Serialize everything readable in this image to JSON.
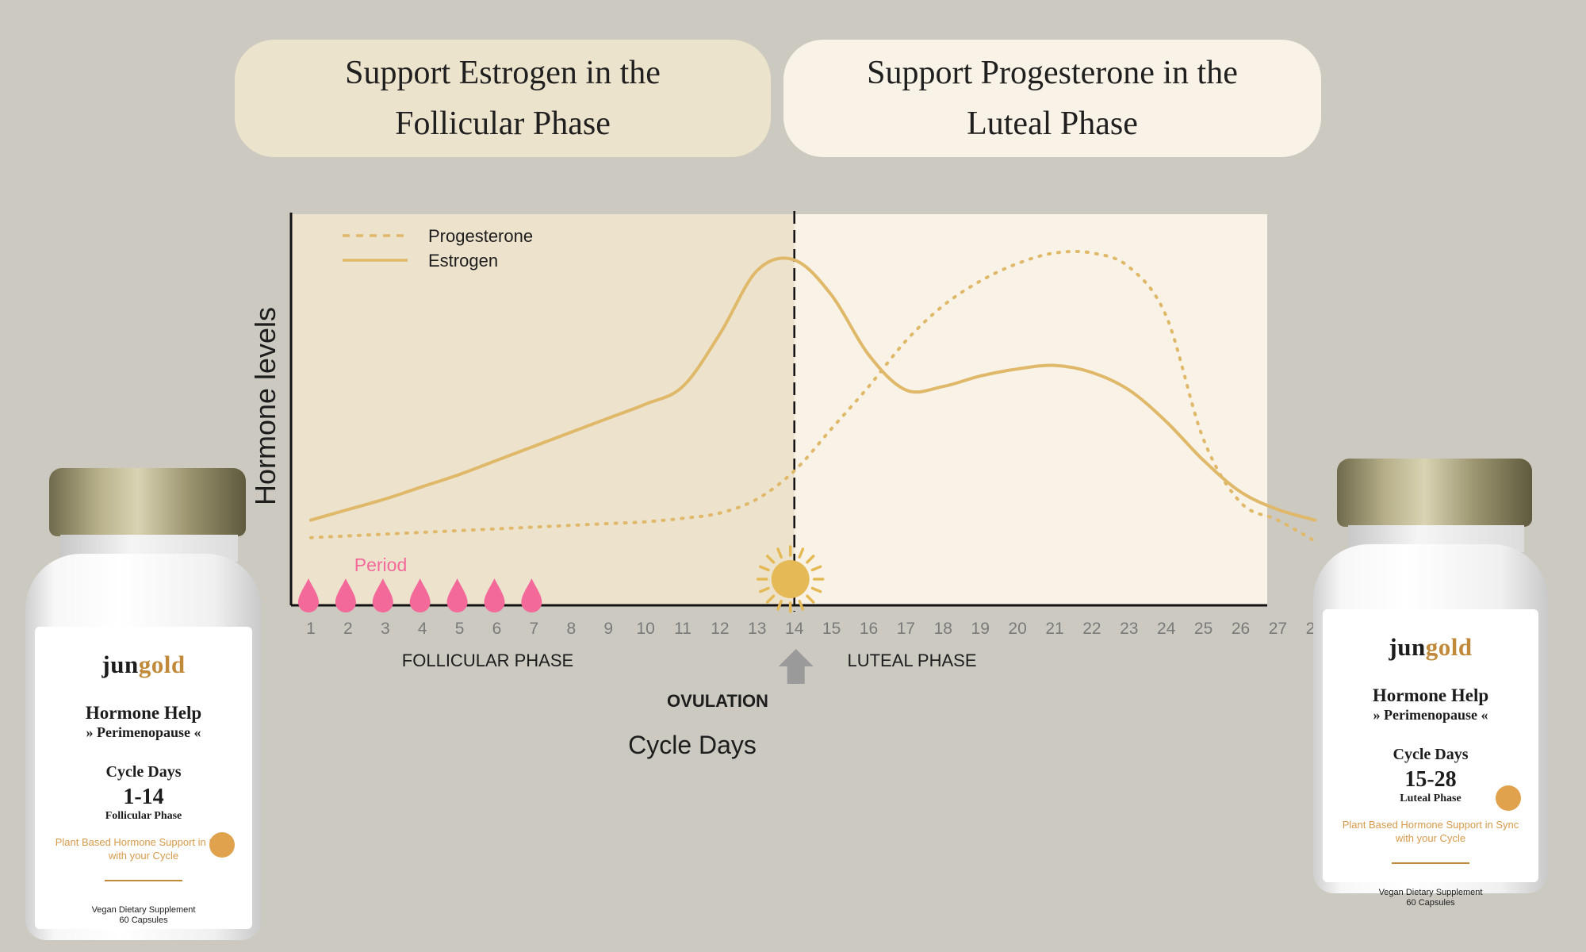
{
  "headers": {
    "left": [
      "Support Estrogen in the",
      "Follicular Phase"
    ],
    "right": [
      "Support Progesterone in the",
      "Luteal Phase"
    ]
  },
  "chart_data": {
    "type": "line",
    "xlabel": "Cycle Days",
    "ylabel": "Hormone levels",
    "x": [
      1,
      2,
      3,
      4,
      5,
      6,
      7,
      8,
      9,
      10,
      11,
      12,
      13,
      14,
      15,
      16,
      17,
      18,
      19,
      20,
      21,
      22,
      23,
      24,
      25,
      26,
      27,
      28
    ],
    "xlim": [
      0.5,
      28.5
    ],
    "ylim": [
      0,
      10
    ],
    "grid": false,
    "legend_position": "top-left",
    "series": [
      {
        "name": "Progesterone",
        "style": "dotted",
        "values": [
          1.7,
          1.75,
          1.8,
          1.85,
          1.9,
          1.95,
          2.0,
          2.05,
          2.1,
          2.15,
          2.25,
          2.4,
          2.8,
          3.6,
          4.8,
          6.0,
          7.3,
          8.3,
          9.0,
          9.5,
          9.8,
          9.8,
          9.4,
          8.0,
          4.5,
          2.7,
          2.2,
          1.6
        ]
      },
      {
        "name": "Estrogen",
        "style": "solid",
        "values": [
          2.2,
          2.5,
          2.8,
          3.15,
          3.5,
          3.9,
          4.3,
          4.7,
          5.1,
          5.5,
          6.0,
          7.5,
          9.3,
          9.6,
          8.6,
          6.9,
          5.9,
          6.0,
          6.3,
          6.5,
          6.6,
          6.4,
          5.9,
          5.0,
          3.9,
          3.0,
          2.5,
          2.2
        ]
      }
    ],
    "regions": [
      {
        "label": "FOLLICULAR PHASE",
        "from": 0.5,
        "to": 14,
        "color": "#ede3cd"
      },
      {
        "label": "LUTEAL PHASE",
        "from": 14,
        "to": 28.5,
        "color": "#f8f3e6"
      }
    ],
    "annotations": {
      "period_label": "Period",
      "period_days": [
        1,
        2,
        3,
        4,
        5,
        6,
        7
      ],
      "ovulation_label": "OVULATION",
      "ovulation_day": 14
    },
    "colors": {
      "line": "#e0b869",
      "period": "#f2699a",
      "sun": "#e5b955",
      "arrow": "#9a9a9a"
    }
  },
  "bottles": [
    {
      "brand_pre": "jun",
      "brand_post": "gold",
      "product": "Hormone Help",
      "product_sub": "» Perimenopause «",
      "days_title": "Cycle Days",
      "days": "1-14",
      "phase": "Follicular Phase",
      "tagline": "Plant Based Hormone Support in Sync with your Cycle",
      "vegan": "Vegan Dietary Supplement",
      "capsules": "60 Capsules"
    },
    {
      "brand_pre": "jun",
      "brand_post": "gold",
      "product": "Hormone Help",
      "product_sub": "» Perimenopause «",
      "days_title": "Cycle Days",
      "days": "15-28",
      "phase": "Luteal Phase",
      "tagline": "Plant Based Hormone Support in Sync with your Cycle",
      "vegan": "Vegan Dietary Supplement",
      "capsules": "60 Capsules"
    }
  ]
}
